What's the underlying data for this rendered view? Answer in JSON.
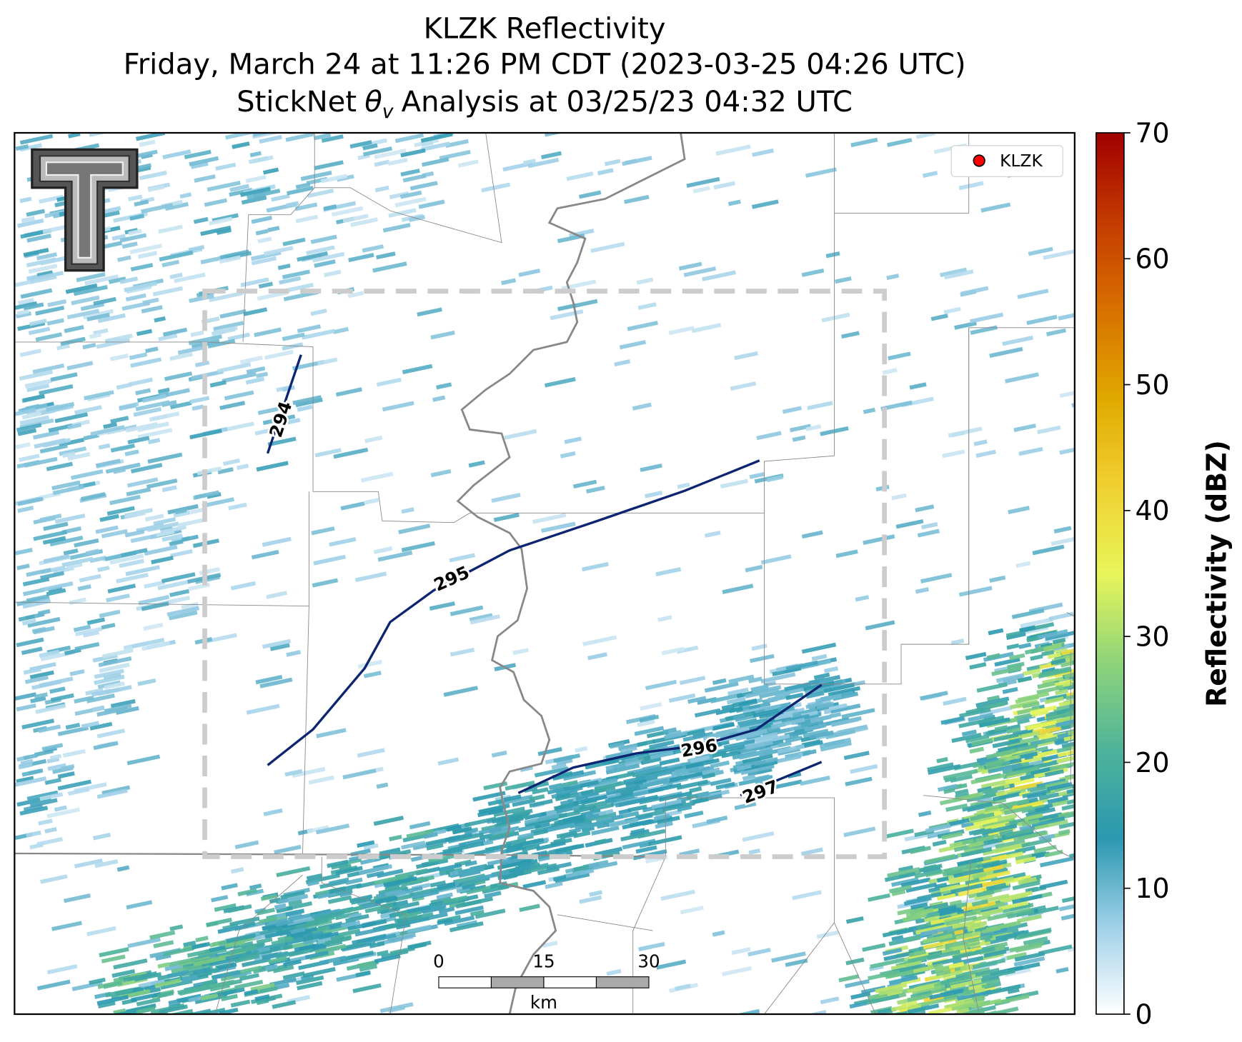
{
  "title": {
    "line1": "KLZK Reflectivity",
    "line2": "Friday, March 24 at 11:26 PM CDT (2023-03-25 04:26 UTC)",
    "line3": {
      "prefix": "StickNet",
      "symbol": "θ",
      "subscript": "v",
      "suffix": "Analysis at 03/25/23 04:32 UTC"
    }
  },
  "legend": {
    "label": "KLZK",
    "color": "#ff0000"
  },
  "contours": {
    "color": "#0d2470",
    "levels": [
      294,
      295,
      296,
      297
    ]
  },
  "scale_bar": {
    "ticks": [
      0,
      15,
      30
    ],
    "unit": "km"
  },
  "colorbar": {
    "label": "Reflectivity (dBZ)",
    "lim": [
      0,
      70
    ],
    "ticks": [
      0,
      10,
      20,
      30,
      40,
      50,
      60,
      70
    ],
    "colors": [
      "#ffffff",
      "#9fd0e8",
      "#2a98b0",
      "#4fb39a",
      "#8fd47a",
      "#e8f55a",
      "#f0d030",
      "#e0a800",
      "#d87000",
      "#c43a00",
      "#a00000"
    ]
  }
}
